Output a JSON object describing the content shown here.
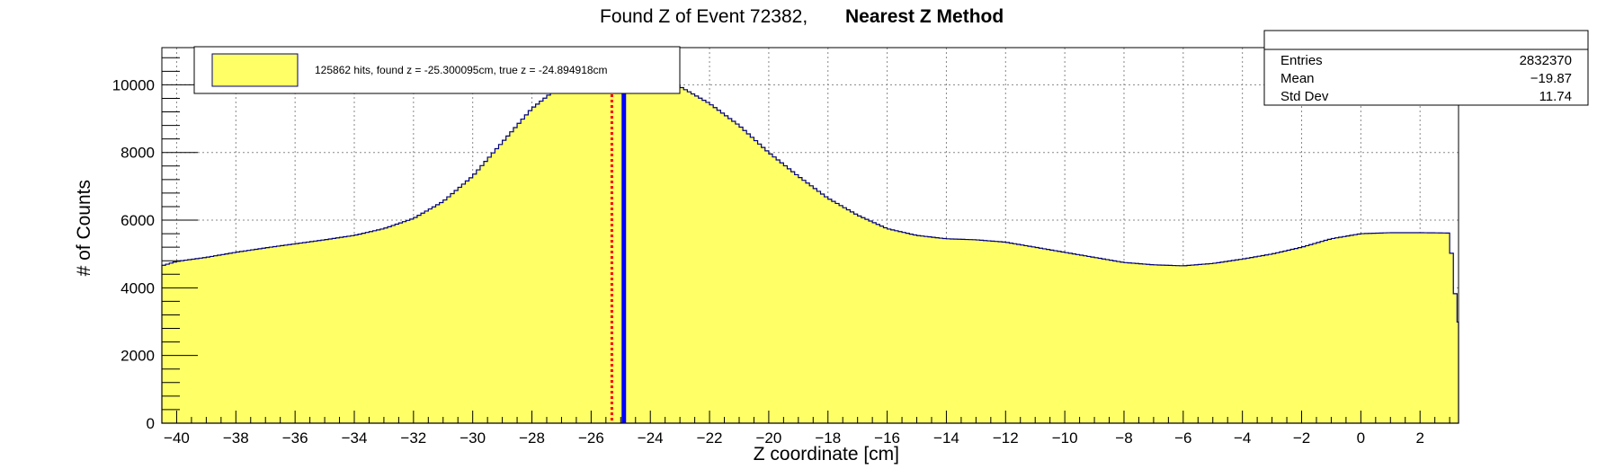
{
  "chart_data": {
    "type": "histogram",
    "title": "Found Z of Event 72382,",
    "subtitle": "Nearest Z Method",
    "xlabel": "Z coordinate [cm]",
    "ylabel": "# of Counts",
    "xlim": [
      -40.5,
      3.3
    ],
    "ylim": [
      0,
      11100
    ],
    "grid": true,
    "x_ticks": [
      -40,
      -38,
      -36,
      -34,
      -32,
      -30,
      -28,
      -26,
      -24,
      -22,
      -20,
      -18,
      -16,
      -14,
      -12,
      -10,
      -8,
      -6,
      -4,
      -2,
      0,
      2
    ],
    "x_tick_labels": [
      "−40",
      "−38",
      "−36",
      "−34",
      "−32",
      "−30",
      "−28",
      "−26",
      "−24",
      "−22",
      "−20",
      "−18",
      "−16",
      "−14",
      "−12",
      "−10",
      "−8",
      "−6",
      "−4",
      "−2",
      "0",
      "2"
    ],
    "y_ticks": [
      0,
      2000,
      4000,
      6000,
      8000,
      10000
    ],
    "y_tick_labels": [
      "0",
      "2000",
      "4000",
      "6000",
      "8000",
      "10000"
    ],
    "histogram": {
      "fill_color": "#ffff66",
      "line_color": "#00007a",
      "x": [
        -40.5,
        -40,
        -39,
        -38,
        -37,
        -36,
        -35,
        -34,
        -33,
        -32,
        -31,
        -30,
        -29,
        -28,
        -27,
        -26.5,
        -26,
        -25.5,
        -25,
        -24.5,
        -24,
        -23.5,
        -23,
        -22,
        -21,
        -20,
        -19,
        -18,
        -17,
        -16,
        -15,
        -14,
        -13,
        -12,
        -11,
        -10,
        -9,
        -8,
        -7,
        -6,
        -5,
        -4,
        -3,
        -2,
        -1,
        0,
        1,
        2,
        3,
        3.3
      ],
      "y": [
        4650,
        4780,
        4900,
        5050,
        5180,
        5300,
        5420,
        5550,
        5750,
        6050,
        6550,
        7300,
        8300,
        9300,
        10000,
        10300,
        10500,
        10600,
        10650,
        10550,
        10400,
        10200,
        9950,
        9450,
        8800,
        8000,
        7300,
        6650,
        6150,
        5750,
        5550,
        5450,
        5420,
        5350,
        5200,
        5050,
        4900,
        4750,
        4680,
        4650,
        4720,
        4850,
        5000,
        5200,
        5450,
        5600,
        5630,
        5630,
        5620,
        2750
      ]
    },
    "markers": [
      {
        "type": "found-z",
        "x": -25.300095,
        "color": "#ff0000",
        "style": "dotted"
      },
      {
        "type": "true-z",
        "x": -24.894918,
        "color": "#0000ff",
        "style": "solid"
      }
    ],
    "legend": {
      "position": "top-left",
      "entries": [
        {
          "label": "125862 hits, found z = -25.300095cm, true z = -24.894918cm",
          "fill_color": "#ffff66"
        }
      ]
    },
    "stats_box": {
      "position": "top-right",
      "rows": [
        {
          "label": "Entries",
          "value": "2832370"
        },
        {
          "label": "Mean",
          "value": "−19.87"
        },
        {
          "label": "Std Dev",
          "value": "11.74"
        }
      ]
    }
  }
}
